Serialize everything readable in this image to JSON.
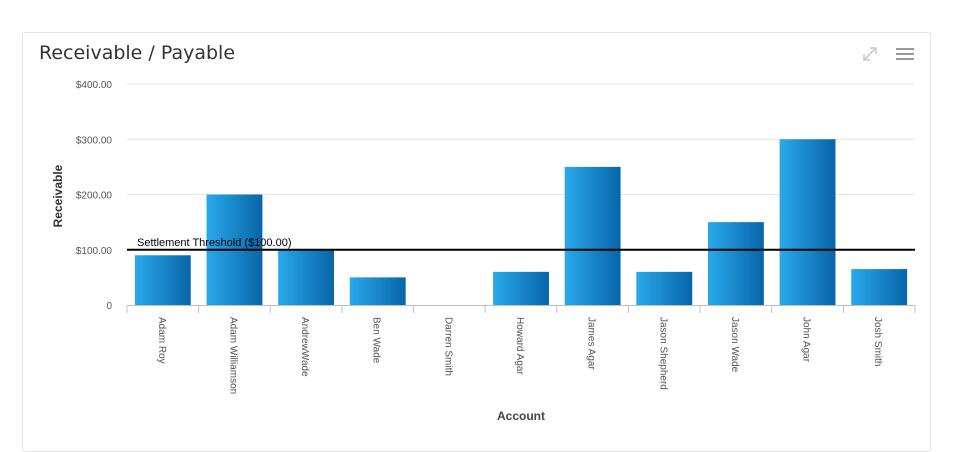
{
  "panel": {
    "title": "Receivable / Payable",
    "expand_icon": "expand-arrows-icon",
    "menu_icon": "hamburger-menu-icon"
  },
  "chart_data": {
    "type": "bar",
    "xlabel": "Account",
    "ylabel": "Receivable",
    "ylim": [
      0,
      400
    ],
    "yticks": [
      {
        "value": 0,
        "label": "0"
      },
      {
        "value": 100,
        "label": "$100.00"
      },
      {
        "value": 200,
        "label": "$200.00"
      },
      {
        "value": 300,
        "label": "$300.00"
      },
      {
        "value": 400,
        "label": "$400.00"
      }
    ],
    "categories": [
      "Adam Roy",
      "Adam Williamson",
      "AndrewWade",
      "Ben Wade",
      "Darren Smith",
      "Howard Agar",
      "James Agar",
      "Jason Shepherd",
      "Jason Wade",
      "John Agar",
      "Josh Smith"
    ],
    "values": [
      90,
      200,
      100,
      50,
      0,
      60,
      250,
      60,
      150,
      300,
      65
    ],
    "threshold": {
      "value": 100,
      "label": "Settlement Threshold ($100.00)"
    },
    "grid": true,
    "colors": {
      "bar_light": "#29a9ec",
      "bar_dark": "#0765a8",
      "grid": "#e6e6e6",
      "threshold": "#000000"
    }
  }
}
